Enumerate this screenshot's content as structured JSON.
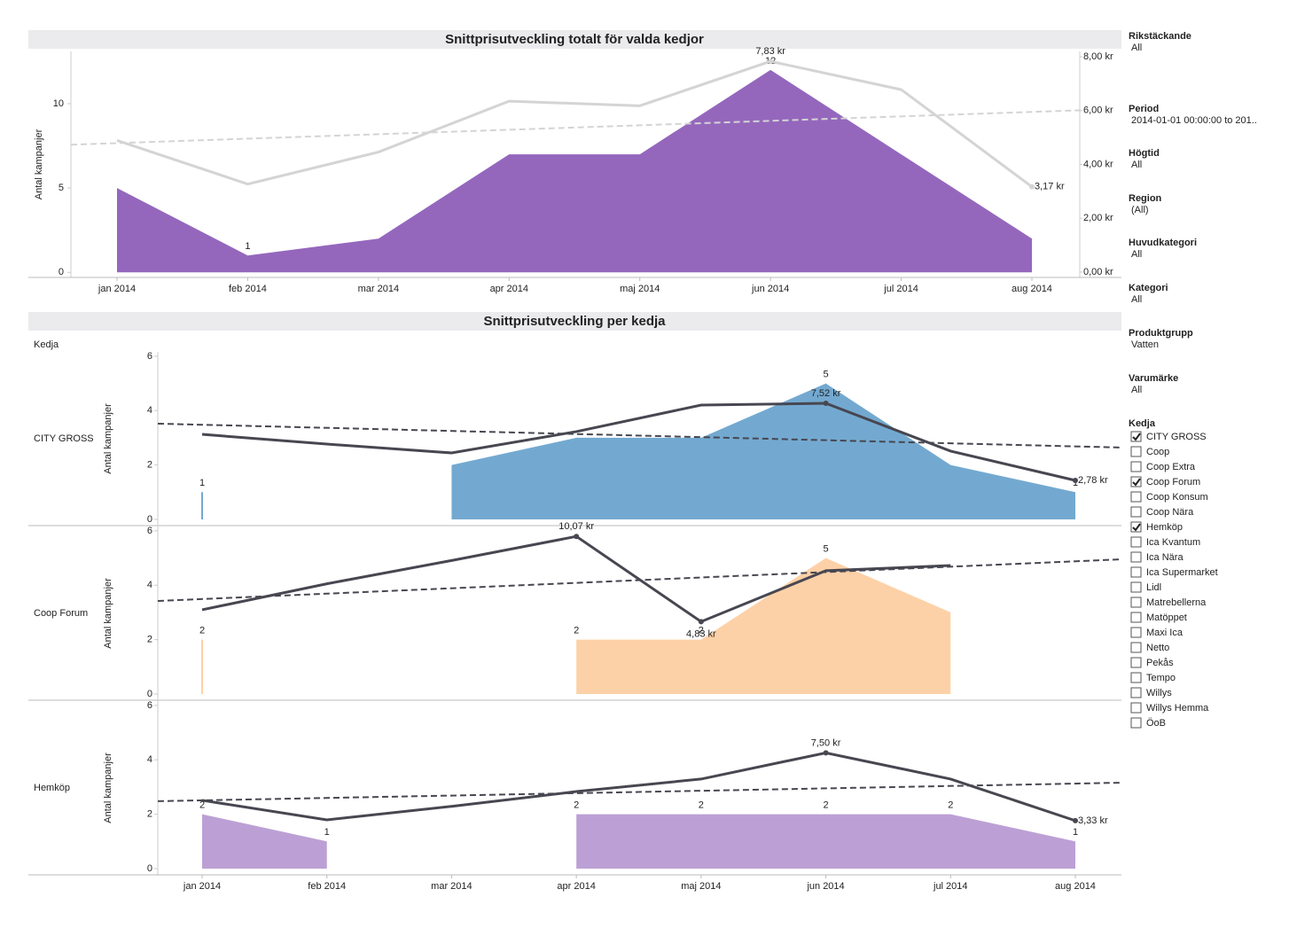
{
  "chart_data": [
    {
      "type": "area",
      "title": "Snittprisutveckling totalt för valda kedjor",
      "categories": [
        "jan 2014",
        "feb 2014",
        "mar 2014",
        "apr 2014",
        "maj 2014",
        "jun 2014",
        "jul 2014",
        "aug 2014"
      ],
      "y_label": "Antal kampanjer",
      "ylim": [
        -0.3,
        13.1
      ],
      "yticks": [
        0,
        5,
        10
      ],
      "y2lim": [
        -0.2,
        8.2
      ],
      "y2ticks": [
        {
          "value": 0,
          "label": "0,00 kr"
        },
        {
          "value": 2,
          "label": "2,00 kr"
        },
        {
          "value": 4,
          "label": "4,00 kr"
        },
        {
          "value": 6,
          "label": "6,00 kr"
        },
        {
          "value": 8,
          "label": "8,00 kr"
        }
      ],
      "series": [
        {
          "color": "#9467bd",
          "values": [
            5,
            1,
            2,
            7,
            7,
            12,
            7,
            2
          ],
          "value_labels": [
            null,
            "1",
            null,
            null,
            null,
            "12",
            null,
            null
          ]
        },
        {
          "type": "line",
          "axis": "y2",
          "color": "#d4d4d4",
          "values": [
            4.89,
            3.27,
            4.46,
            6.35,
            6.18,
            7.83,
            6.78,
            3.17
          ],
          "value_labels": [
            null,
            null,
            null,
            null,
            null,
            "7,83 kr",
            null,
            "3,17 kr"
          ],
          "trend_values": [
            4.79,
            5.95
          ]
        }
      ]
    },
    {
      "type": "area",
      "title": "Snittprisutveckling per kedja",
      "row_header": "Kedja",
      "categories": [
        "jan 2014",
        "feb 2014",
        "mar 2014",
        "apr 2014",
        "maj 2014",
        "jun 2014",
        "jul 2014",
        "aug 2014"
      ],
      "y_label": "Antal kampanjer",
      "ylim": [
        -0.23,
        6.16
      ],
      "yticks": [
        0,
        2,
        4,
        6
      ],
      "y2lim": [
        0,
        10.68
      ],
      "panels": [
        {
          "name": "CITY GROSS",
          "series": [
            {
              "color": "#73a9d0",
              "values": [
                1,
                null,
                2,
                3,
                3,
                5,
                2,
                1
              ],
              "value_labels": [
                "1",
                null,
                null,
                null,
                null,
                "5",
                null,
                "1"
              ]
            },
            {
              "type": "line",
              "axis": "y2",
              "color": "#474751",
              "values": [
                5.61,
                5.01,
                4.47,
                5.78,
                7.41,
                7.52,
                4.58,
                2.78
              ],
              "value_labels": [
                null,
                null,
                null,
                null,
                null,
                "7,52 kr",
                null,
                "2,78 kr"
              ],
              "trend_values": [
                6.2,
                4.87
              ]
            }
          ]
        },
        {
          "name": "Coop Forum",
          "series": [
            {
              "color": "#fdd1a7",
              "values": [
                2,
                null,
                null,
                2,
                2,
                5,
                3,
                null
              ],
              "value_labels": [
                "2",
                null,
                null,
                "2",
                "2",
                "5",
                null,
                null
              ]
            },
            {
              "type": "line",
              "axis": "y2",
              "color": "#474751",
              "values": [
                5.56,
                7.16,
                8.59,
                10.07,
                4.83,
                7.96,
                8.28,
                null
              ],
              "value_labels": [
                null,
                null,
                null,
                "10,07 kr",
                "4,83 kr",
                null,
                null,
                null
              ],
              "trend_values": [
                6.22,
                8.54
              ]
            }
          ]
        },
        {
          "name": "Hemköp",
          "series": [
            {
              "color": "#bca0d5",
              "values": [
                2,
                1,
                null,
                2,
                2,
                2,
                2,
                1
              ],
              "value_labels": [
                "2",
                "1",
                null,
                "2",
                "2",
                "2",
                "2",
                "1"
              ]
            },
            {
              "type": "line",
              "axis": "y2",
              "color": "#474751",
              "values": [
                4.58,
                3.38,
                4.21,
                5.12,
                5.89,
                7.5,
                5.89,
                3.33
              ],
              "value_labels": [
                null,
                null,
                null,
                null,
                null,
                "7,50 kr",
                null,
                "3,33 kr"
              ],
              "trend_values": [
                4.58,
                5.61
              ]
            }
          ]
        }
      ]
    }
  ],
  "filters": [
    {
      "title": "Rikstäckande",
      "value": "All"
    },
    {
      "title": "Period",
      "value": "2014-01-01 00:00:00 to 201.."
    },
    {
      "title": "Högtid",
      "value": "All"
    },
    {
      "title": "Region",
      "value": "(All)"
    },
    {
      "title": "Huvudkategori",
      "value": "All"
    },
    {
      "title": "Kategori",
      "value": "All"
    },
    {
      "title": "Produktgrupp",
      "value": "Vatten"
    },
    {
      "title": "Varumärke",
      "value": "All"
    }
  ],
  "kedja_filter": {
    "title": "Kedja",
    "options": [
      {
        "label": "CITY GROSS",
        "checked": true
      },
      {
        "label": "Coop",
        "checked": false
      },
      {
        "label": "Coop Extra",
        "checked": false
      },
      {
        "label": "Coop Forum",
        "checked": true
      },
      {
        "label": "Coop Konsum",
        "checked": false
      },
      {
        "label": "Coop Nära",
        "checked": false
      },
      {
        "label": "Hemköp",
        "checked": true
      },
      {
        "label": "Ica Kvantum",
        "checked": false
      },
      {
        "label": "Ica Nära",
        "checked": false
      },
      {
        "label": "Ica Supermarket",
        "checked": false
      },
      {
        "label": "Lidl",
        "checked": false
      },
      {
        "label": "Matrebellerna",
        "checked": false
      },
      {
        "label": "Matöppet",
        "checked": false
      },
      {
        "label": "Maxi Ica",
        "checked": false
      },
      {
        "label": "Netto",
        "checked": false
      },
      {
        "label": "Pekås",
        "checked": false
      },
      {
        "label": "Tempo",
        "checked": false
      },
      {
        "label": "Willys",
        "checked": false
      },
      {
        "label": "Willys Hemma",
        "checked": false
      },
      {
        "label": "ÖoB",
        "checked": false
      }
    ]
  }
}
